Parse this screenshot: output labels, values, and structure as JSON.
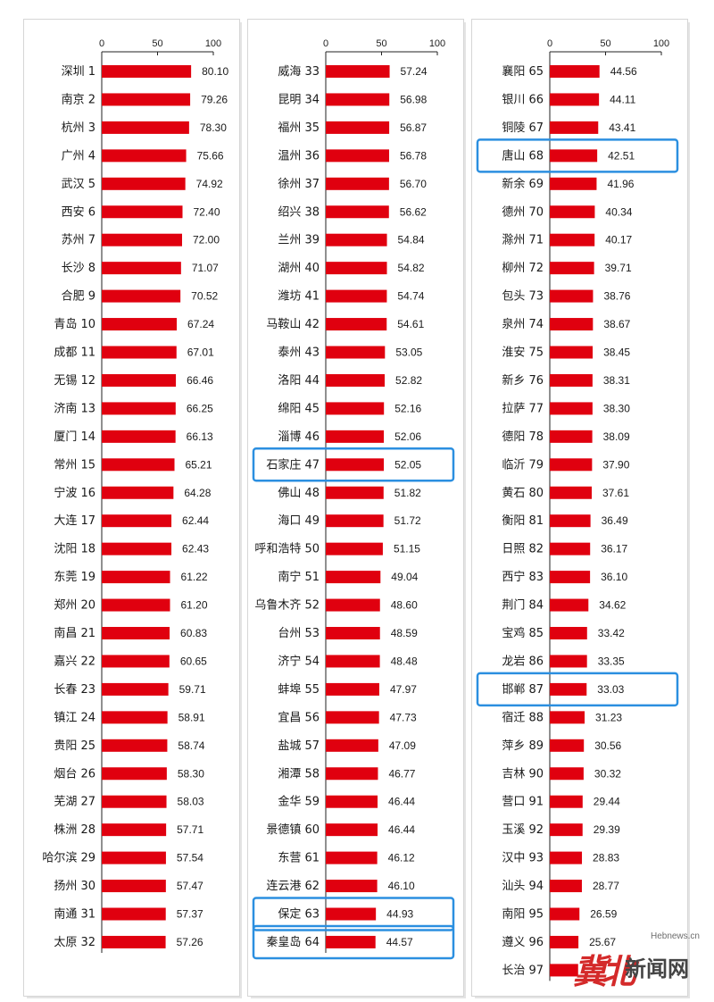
{
  "chart_data": [
    {
      "type": "bar",
      "orientation": "horizontal",
      "xlim": [
        0,
        100
      ],
      "xticks": [
        "0",
        "50",
        "100"
      ],
      "bar_color": "#e0000f",
      "highlight_color": "#2b8fe0",
      "categories": [
        "深圳 1",
        "南京 2",
        "杭州 3",
        "广州 4",
        "武汉 5",
        "西安 6",
        "苏州 7",
        "长沙 8",
        "合肥 9",
        "青岛 10",
        "成都 11",
        "无锡 12",
        "济南 13",
        "厦门 14",
        "常州 15",
        "宁波 16",
        "大连 17",
        "沈阳 18",
        "东莞 19",
        "郑州 20",
        "南昌 21",
        "嘉兴 22",
        "长春 23",
        "镇江 24",
        "贵阳 25",
        "烟台 26",
        "芜湖 27",
        "株洲 28",
        "哈尔滨 29",
        "扬州 30",
        "南通 31",
        "太原 32"
      ],
      "values": [
        80.1,
        79.26,
        78.3,
        75.66,
        74.92,
        72.4,
        72.0,
        71.07,
        70.52,
        67.24,
        67.01,
        66.46,
        66.25,
        66.13,
        65.21,
        64.28,
        62.44,
        62.43,
        61.22,
        61.2,
        60.83,
        60.65,
        59.71,
        58.91,
        58.74,
        58.3,
        58.03,
        57.71,
        57.54,
        57.47,
        57.37,
        57.26
      ],
      "value_labels": [
        "80.10",
        "79.26",
        "78.30",
        "75.66",
        "74.92",
        "72.40",
        "72.00",
        "71.07",
        "70.52",
        "67.24",
        "67.01",
        "66.46",
        "66.25",
        "66.13",
        "65.21",
        "64.28",
        "62.44",
        "62.43",
        "61.22",
        "61.20",
        "60.83",
        "60.65",
        "59.71",
        "58.91",
        "58.74",
        "58.30",
        "58.03",
        "57.71",
        "57.54",
        "57.47",
        "57.37",
        "57.26"
      ],
      "highlighted": []
    },
    {
      "type": "bar",
      "orientation": "horizontal",
      "xlim": [
        0,
        100
      ],
      "xticks": [
        "0",
        "50",
        "100"
      ],
      "bar_color": "#e0000f",
      "highlight_color": "#2b8fe0",
      "categories": [
        "威海 33",
        "昆明 34",
        "福州 35",
        "温州 36",
        "徐州 37",
        "绍兴 38",
        "兰州 39",
        "湖州 40",
        "潍坊 41",
        "马鞍山 42",
        "泰州 43",
        "洛阳 44",
        "绵阳 45",
        "淄博 46",
        "石家庄 47",
        "佛山 48",
        "海口 49",
        "呼和浩特 50",
        "南宁 51",
        "乌鲁木齐 52",
        "台州 53",
        "济宁 54",
        "蚌埠 55",
        "宜昌 56",
        "盐城 57",
        "湘潭 58",
        "金华 59",
        "景德镇 60",
        "东营 61",
        "连云港 62",
        "保定 63",
        "秦皇岛 64"
      ],
      "values": [
        57.24,
        56.98,
        56.87,
        56.78,
        56.7,
        56.62,
        54.84,
        54.82,
        54.74,
        54.61,
        53.05,
        52.82,
        52.16,
        52.06,
        52.05,
        51.82,
        51.72,
        51.15,
        49.04,
        48.6,
        48.59,
        48.48,
        47.97,
        47.73,
        47.09,
        46.77,
        46.44,
        46.44,
        46.12,
        46.1,
        44.93,
        44.57
      ],
      "value_labels": [
        "57.24",
        "56.98",
        "56.87",
        "56.78",
        "56.70",
        "56.62",
        "54.84",
        "54.82",
        "54.74",
        "54.61",
        "53.05",
        "52.82",
        "52.16",
        "52.06",
        "52.05",
        "51.82",
        "51.72",
        "51.15",
        "49.04",
        "48.60",
        "48.59",
        "48.48",
        "47.97",
        "47.73",
        "47.09",
        "46.77",
        "46.44",
        "46.44",
        "46.12",
        "46.10",
        "44.93",
        "44.57"
      ],
      "highlighted": [
        "石家庄 47",
        "保定 63",
        "秦皇岛 64"
      ]
    },
    {
      "type": "bar",
      "orientation": "horizontal",
      "xlim": [
        0,
        100
      ],
      "xticks": [
        "0",
        "50",
        "100"
      ],
      "bar_color": "#e0000f",
      "highlight_color": "#2b8fe0",
      "categories": [
        "襄阳 65",
        "银川 66",
        "铜陵 67",
        "唐山 68",
        "新余 69",
        "德州 70",
        "滁州 71",
        "柳州 72",
        "包头 73",
        "泉州 74",
        "淮安 75",
        "新乡 76",
        "拉萨 77",
        "德阳 78",
        "临沂 79",
        "黄石 80",
        "衡阳 81",
        "日照 82",
        "西宁 83",
        "荆门 84",
        "宝鸡 85",
        "龙岩 86",
        "邯郸 87",
        "宿迁 88",
        "萍乡 89",
        "吉林 90",
        "营口 91",
        "玉溪 92",
        "汉中 93",
        "汕头 94",
        "南阳 95",
        "遵义 96",
        "长治 97"
      ],
      "values": [
        44.56,
        44.11,
        43.41,
        42.51,
        41.96,
        40.34,
        40.17,
        39.71,
        38.76,
        38.67,
        38.45,
        38.31,
        38.3,
        38.09,
        37.9,
        37.61,
        36.49,
        36.17,
        36.1,
        34.62,
        33.42,
        33.35,
        33.03,
        31.23,
        30.56,
        30.32,
        29.44,
        29.39,
        28.83,
        28.77,
        26.59,
        25.67,
        25.4
      ],
      "value_labels": [
        "44.56",
        "44.11",
        "43.41",
        "42.51",
        "41.96",
        "40.34",
        "40.17",
        "39.71",
        "38.76",
        "38.67",
        "38.45",
        "38.31",
        "38.30",
        "38.09",
        "37.90",
        "37.61",
        "36.49",
        "36.17",
        "36.10",
        "34.62",
        "33.42",
        "33.35",
        "33.03",
        "31.23",
        "30.56",
        "30.32",
        "29.44",
        "29.39",
        "28.83",
        "28.77",
        "26.59",
        "25.67",
        ""
      ],
      "highlighted": [
        "唐山 68",
        "邯郸 87"
      ]
    }
  ],
  "watermark": {
    "url": "Hebnews.cn",
    "logo": "冀北",
    "name": "新闻网"
  }
}
